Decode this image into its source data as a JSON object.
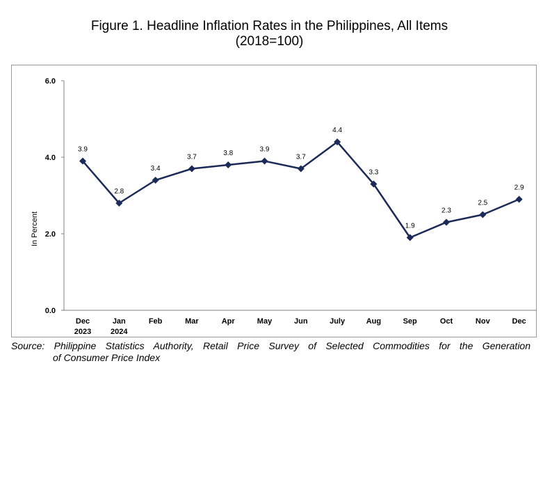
{
  "title": {
    "line1": "Figure 1. Headline Inflation Rates in the Philippines, All Items",
    "line2": "(2018=100)"
  },
  "source": {
    "line1": "Source: Philippine Statistics Authority, Retail Price Survey of Selected Commodities for the Generation",
    "line2": "of Consumer Price Index"
  },
  "chart_data": {
    "type": "line",
    "ylabel": "In Percent",
    "xlabel": "",
    "ylim": [
      0,
      6
    ],
    "yticks": [
      "0.0",
      "2.0",
      "4.0",
      "6.0"
    ],
    "ytick_values": [
      0,
      2,
      4,
      6
    ],
    "grid": false,
    "categories": [
      {
        "label": "Dec",
        "sub": "2023"
      },
      {
        "label": "Jan",
        "sub": "2024"
      },
      {
        "label": "Feb",
        "sub": ""
      },
      {
        "label": "Mar",
        "sub": ""
      },
      {
        "label": "Apr",
        "sub": ""
      },
      {
        "label": "May",
        "sub": ""
      },
      {
        "label": "Jun",
        "sub": ""
      },
      {
        "label": "July",
        "sub": ""
      },
      {
        "label": "Aug",
        "sub": ""
      },
      {
        "label": "Sep",
        "sub": ""
      },
      {
        "label": "Oct",
        "sub": ""
      },
      {
        "label": "Nov",
        "sub": ""
      },
      {
        "label": "Dec",
        "sub": ""
      }
    ],
    "series": [
      {
        "values": [
          3.9,
          2.8,
          3.4,
          3.7,
          3.8,
          3.9,
          3.7,
          4.4,
          3.3,
          1.9,
          2.3,
          2.5,
          2.9
        ],
        "labels": [
          "3.9",
          "2.8",
          "3.4",
          "3.7",
          "3.8",
          "3.9",
          "3.7",
          "4.4",
          "3.3",
          "1.9",
          "2.3",
          "2.5",
          "2.9"
        ],
        "color": "#1b2a56",
        "marker": "diamond"
      }
    ],
    "axis_color": "#808080"
  }
}
